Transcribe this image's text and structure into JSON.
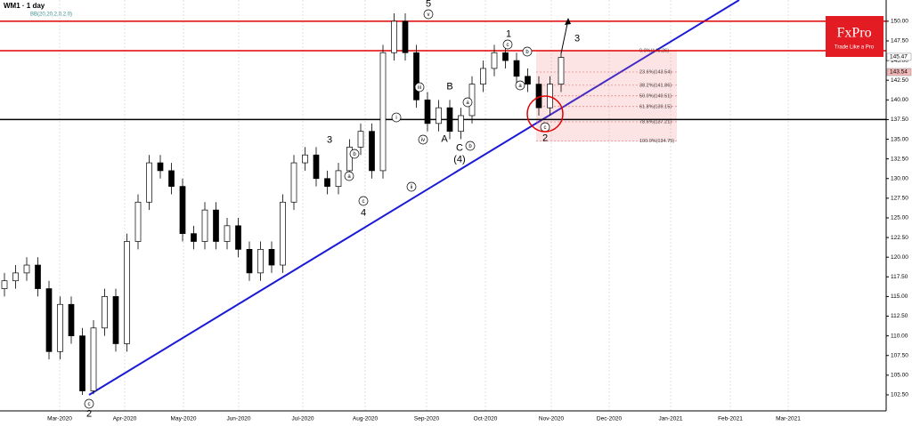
{
  "chart_data": {
    "type": "candlestick",
    "title": "WM1 · 1 day",
    "indicator": "BB(20,20,2,0,2.0)",
    "ylim": [
      100.46,
      152.7
    ],
    "yticks": [
      {
        "value": 102.5,
        "label": "102.50"
      },
      {
        "value": 105,
        "label": "105.00"
      },
      {
        "value": 107.5,
        "label": "107.50"
      },
      {
        "value": 110,
        "label": "110.00"
      },
      {
        "value": 112.5,
        "label": "112.50"
      },
      {
        "value": 115,
        "label": "115.00"
      },
      {
        "value": 117.5,
        "label": "117.50"
      },
      {
        "value": 120,
        "label": "120.00"
      },
      {
        "value": 122.5,
        "label": "122.50"
      },
      {
        "value": 125,
        "label": "125.00"
      },
      {
        "value": 127.5,
        "label": "127.50"
      },
      {
        "value": 130,
        "label": "130.00"
      },
      {
        "value": 132.5,
        "label": "132.50"
      },
      {
        "value": 135,
        "label": "135.00"
      },
      {
        "value": 137.5,
        "label": "137.50"
      },
      {
        "value": 140,
        "label": "140.00"
      },
      {
        "value": 142.5,
        "label": "142.50"
      },
      {
        "value": 145,
        "label": "145.00"
      },
      {
        "value": 147.5,
        "label": "147.50"
      },
      {
        "value": 150,
        "label": "150.00"
      }
    ],
    "x_labels": [
      "Mar-2020",
      "Apr-2020",
      "May-2020",
      "Jun-2020",
      "Jul-2020",
      "Aug-2020",
      "Sep-2020",
      "Oct-2020",
      "Nov-2020",
      "Dec-2020",
      "Jan-2021",
      "Feb-2021",
      "Mar-2021"
    ],
    "ohlc": [
      [
        116,
        118,
        115,
        117
      ],
      [
        117,
        119,
        116,
        118
      ],
      [
        118,
        120,
        117,
        119
      ],
      [
        119,
        120,
        115,
        116
      ],
      [
        116,
        117,
        107,
        108
      ],
      [
        108,
        115,
        107,
        114
      ],
      [
        114,
        115,
        109,
        110
      ],
      [
        110,
        111,
        102.5,
        103
      ],
      [
        103,
        112,
        102.6,
        111
      ],
      [
        111,
        116,
        110,
        115
      ],
      [
        115,
        116,
        108,
        109
      ],
      [
        109,
        123,
        108,
        122
      ],
      [
        122,
        128,
        121,
        127
      ],
      [
        127,
        133,
        126,
        132
      ],
      [
        132,
        133,
        130,
        131
      ],
      [
        131,
        132,
        128,
        129
      ],
      [
        129,
        130,
        122,
        123
      ],
      [
        123,
        124,
        121,
        122
      ],
      [
        122,
        127,
        121,
        126
      ],
      [
        126,
        127,
        121,
        122
      ],
      [
        122,
        125,
        121,
        124
      ],
      [
        124,
        125,
        120,
        121
      ],
      [
        121,
        122,
        117,
        118
      ],
      [
        118,
        122,
        117,
        121
      ],
      [
        121,
        122,
        118,
        119
      ],
      [
        119,
        128,
        118,
        127
      ],
      [
        127,
        133,
        126,
        132
      ],
      [
        132,
        134,
        131,
        133
      ],
      [
        133,
        134,
        129,
        130
      ],
      [
        130,
        131,
        128,
        129
      ],
      [
        129,
        132,
        128,
        131
      ],
      [
        131,
        135,
        130,
        134
      ],
      [
        134,
        137,
        133,
        136
      ],
      [
        136,
        137,
        130,
        131
      ],
      [
        131,
        147,
        130,
        146
      ],
      [
        146,
        151,
        145,
        150
      ],
      [
        150,
        151,
        145,
        146
      ],
      [
        146,
        147,
        139,
        140
      ],
      [
        140,
        141,
        136,
        137
      ],
      [
        137,
        140,
        136,
        139
      ],
      [
        139,
        140,
        135,
        136
      ],
      [
        136,
        139,
        135,
        138
      ],
      [
        138,
        143,
        137,
        142
      ],
      [
        142,
        145,
        141,
        144
      ],
      [
        144,
        147,
        143,
        146
      ],
      [
        146,
        147,
        144,
        145
      ],
      [
        145,
        146,
        142,
        143
      ],
      [
        143,
        144,
        141,
        142
      ],
      [
        142,
        143,
        138,
        139
      ],
      [
        139,
        143,
        138,
        142
      ],
      [
        142,
        146,
        141,
        145.4
      ]
    ],
    "levels": [
      {
        "value": 150,
        "color": "#e00000"
      },
      {
        "value": 146.25,
        "color": "#e00000"
      },
      {
        "value": 137.5,
        "color": "#000000"
      }
    ],
    "fibonacci": [
      {
        "value": 146.26,
        "label": "0.0%(146.26)"
      },
      {
        "value": 143.54,
        "label": "23.6%(143.54)"
      },
      {
        "value": 141.86,
        "label": "38.2%(141.86)"
      },
      {
        "value": 140.51,
        "label": "50.0%(140.51)"
      },
      {
        "value": 139.15,
        "label": "61.8%(139.15)"
      },
      {
        "value": 137.21,
        "label": "78.6%(137.21)"
      },
      {
        "value": 134.75,
        "label": "100.0%(134.75)"
      }
    ],
    "price_tags": [
      {
        "value": 145.47,
        "label": "145.47",
        "color": "#ffffff"
      },
      {
        "value": 143.54,
        "label": "143.54",
        "color": "#f4b8b8"
      }
    ],
    "annotations": [
      "5",
      "v",
      "1",
      "c",
      "b",
      "a",
      "3",
      "B",
      "A",
      "C",
      "(4)",
      "b",
      "a",
      "3",
      "b",
      "a",
      "c",
      "4",
      "iii",
      "i",
      "iv",
      "ii",
      "c",
      "2",
      "c",
      "2"
    ],
    "logo": {
      "name": "FxPro",
      "slogan": "Trade Like a Pro"
    }
  }
}
